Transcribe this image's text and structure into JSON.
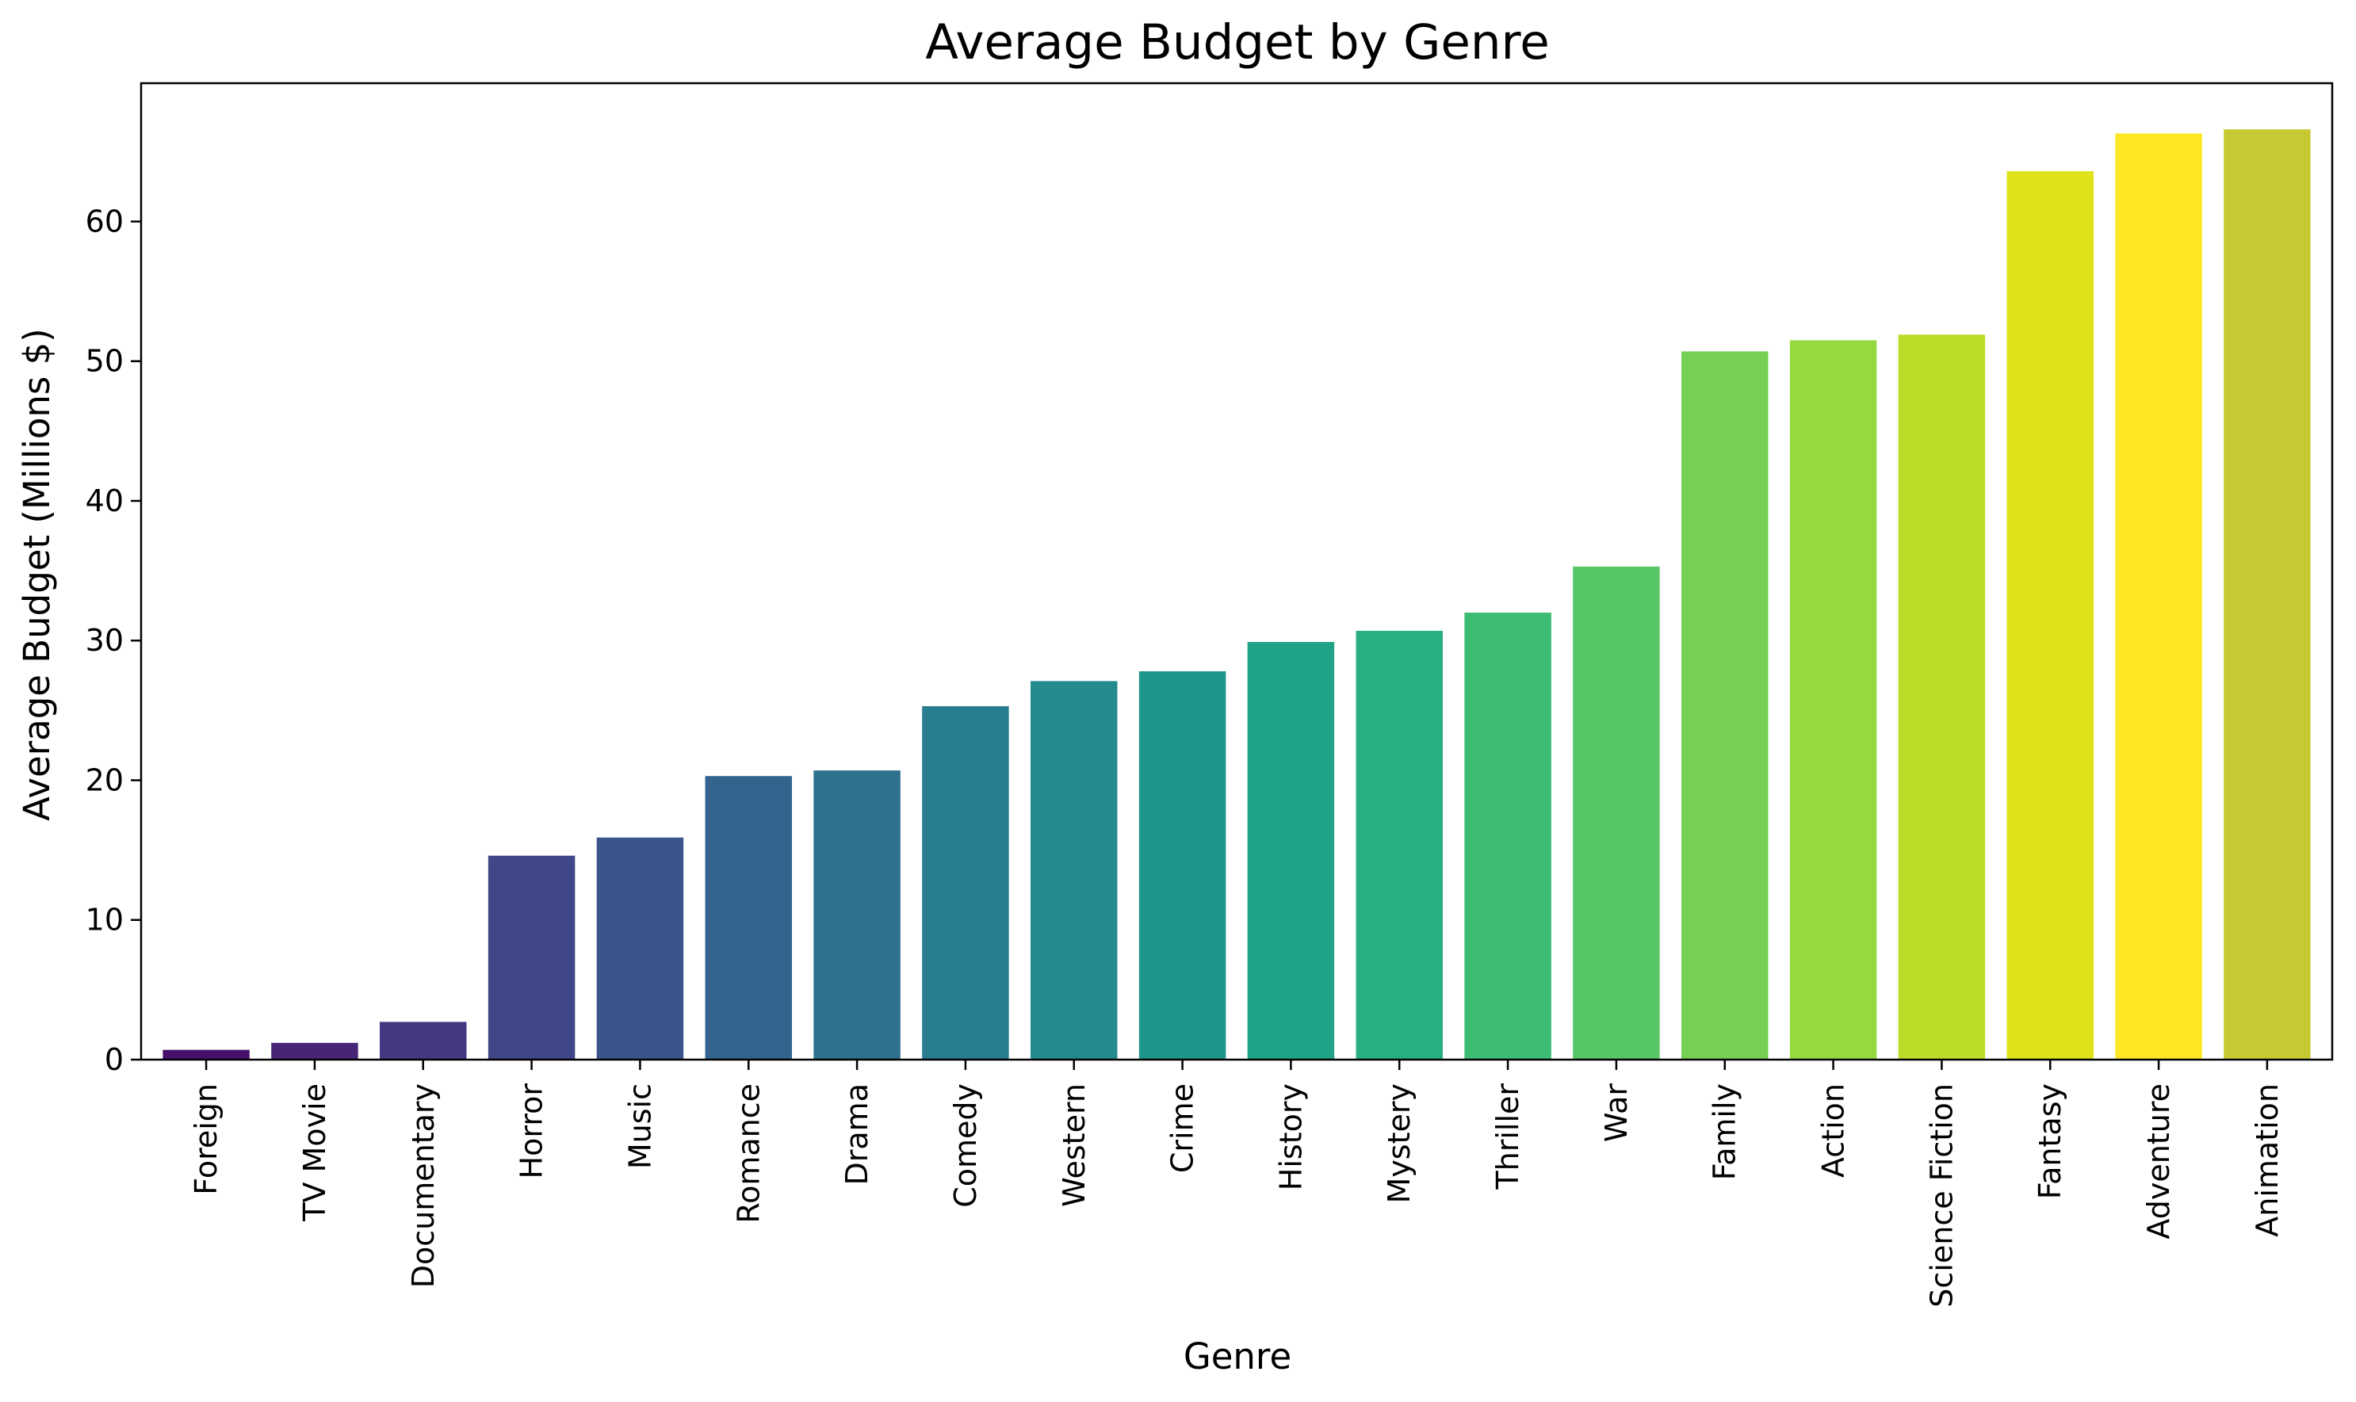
{
  "chart_data": {
    "type": "bar",
    "title": "Average Budget by Genre",
    "xlabel": "Genre",
    "ylabel": "Average Budget (Millions $)",
    "categories": [
      "Foreign",
      "TV Movie",
      "Documentary",
      "Horror",
      "Music",
      "Romance",
      "Drama",
      "Comedy",
      "Western",
      "Crime",
      "History",
      "Mystery",
      "Thriller",
      "War",
      "Family",
      "Action",
      "Science Fiction",
      "Fantasy",
      "Adventure",
      "Animation"
    ],
    "values": [
      0.7,
      1.2,
      2.7,
      14.6,
      15.9,
      20.3,
      20.7,
      25.3,
      27.1,
      27.8,
      29.9,
      30.7,
      32.0,
      35.3,
      50.7,
      51.5,
      51.9,
      63.6,
      66.3,
      66.6
    ],
    "colors": [
      "#46106a",
      "#482677",
      "#453781",
      "#3f4788",
      "#39558c",
      "#32648e",
      "#2d718e",
      "#287d8e",
      "#238a8d",
      "#1f968b",
      "#20a386",
      "#29af7f",
      "#3dbc74",
      "#56c667",
      "#75d054",
      "#95d840",
      "#bade28",
      "#dde318",
      "#fde725",
      "#c7c933"
    ],
    "yticks": [
      0,
      10,
      20,
      30,
      40,
      50,
      60
    ],
    "ylim": [
      0,
      69.9
    ],
    "grid": false
  }
}
